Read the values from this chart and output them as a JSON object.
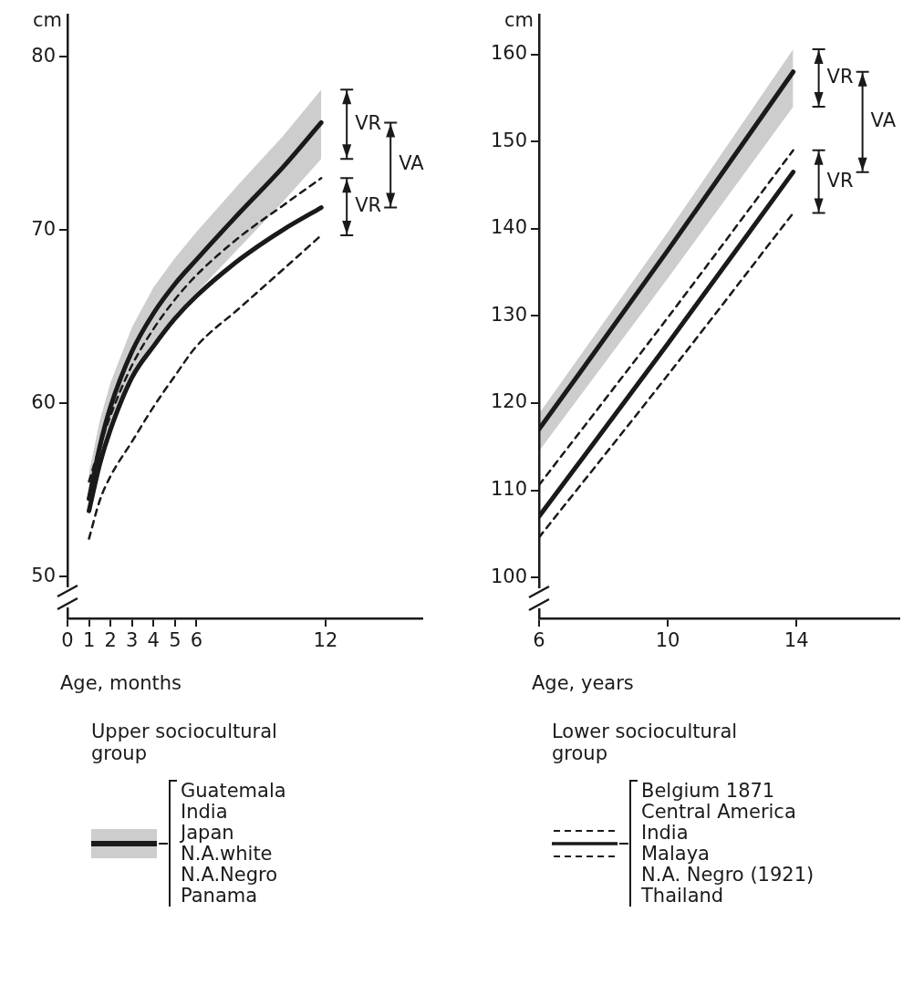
{
  "chart_data": [
    {
      "type": "line",
      "xlabel": "Age, months",
      "ylabel": "cm",
      "xlim": [
        0,
        16.5
      ],
      "xticks": [
        0,
        1,
        2,
        3,
        4,
        5,
        6,
        12
      ],
      "ylim": [
        47.6,
        82.4
      ],
      "yticks": [
        50,
        60,
        70,
        80
      ],
      "grid": false,
      "marker": "none",
      "legend": "bottom",
      "x": [
        1,
        1.5,
        2,
        3,
        4,
        5,
        6,
        8,
        10,
        11.8
      ],
      "series": [
        {
          "name": "Upper sociocultural group",
          "color": "#1a1a1a",
          "values": [
            54.5,
            57.5,
            59.8,
            63.0,
            65.2,
            66.9,
            68.3,
            71.0,
            73.6,
            76.2
          ],
          "lower": [
            53.5,
            56,
            58.3,
            61.3,
            63.5,
            65.1,
            66.4,
            69,
            71.6,
            74.1
          ],
          "upper": [
            56,
            59,
            61.2,
            64.4,
            66.7,
            68.4,
            69.9,
            72.7,
            75.4,
            78.1
          ]
        },
        {
          "color": "#1a1a1a",
          "values": [
            53.8,
            56.5,
            58.5,
            61.5,
            63.3,
            64.9,
            66.2,
            68.3,
            70.0,
            71.3
          ]
        },
        {
          "color": "#1a1a1a",
          "line_style": "dashed",
          "values": [
            55.5,
            57.5,
            59.3,
            62.2,
            64.3,
            66,
            67.4,
            69.6,
            71.4,
            73.0
          ]
        },
        {
          "color": "#1a1a1a",
          "line_style": "dashed",
          "values": [
            52.2,
            54.4,
            55.8,
            57.8,
            59.8,
            61.6,
            63.3,
            65.5,
            67.7,
            69.7
          ]
        }
      ],
      "annotations": [
        "VR",
        "VR",
        "VA",
        "Guatemala",
        "India",
        "Japan",
        "N.A.white",
        "N.A.Negro",
        "Panama"
      ]
    },
    {
      "type": "line",
      "xlabel": "Age, years",
      "ylabel": "cm",
      "xlim": [
        6,
        17.2
      ],
      "xticks": [
        6,
        10,
        14
      ],
      "ylim": [
        95.3,
        164.5
      ],
      "yticks": [
        100,
        110,
        120,
        130,
        140,
        150,
        160
      ],
      "grid": false,
      "marker": "none",
      "legend": "bottom",
      "x": [
        6,
        10,
        13.9
      ],
      "series": [
        {
          "color": "#1a1a1a",
          "values": [
            117,
            137.5,
            158
          ],
          "lower": [
            114.5,
            134.3,
            154
          ],
          "upper": [
            118.8,
            139.6,
            160.6
          ]
        },
        {
          "name": "Lower sociocultural group",
          "color": "#1a1a1a",
          "values": [
            107,
            126.8,
            146.5
          ]
        },
        {
          "color": "#1a1a1a",
          "line_style": "dashed",
          "values": [
            110.6,
            129.8,
            149
          ]
        },
        {
          "color": "#1a1a1a",
          "line_style": "dashed",
          "values": [
            104.6,
            123.2,
            141.8
          ]
        }
      ],
      "annotations": [
        "VR",
        "VR",
        "VA",
        "Belgium 1871",
        "Central America",
        "India",
        "Malaya",
        "N.A. Negro (1921)",
        "Thailand"
      ]
    }
  ]
}
